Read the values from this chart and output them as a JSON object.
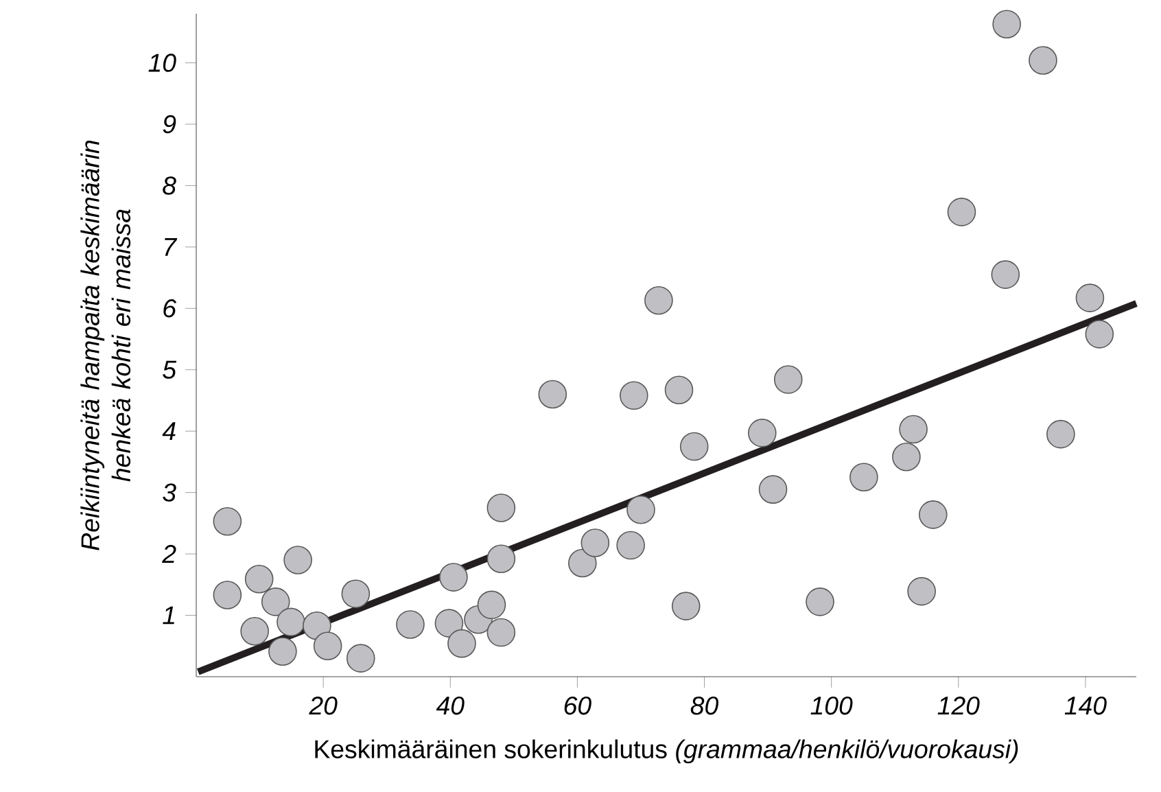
{
  "chart_data": {
    "type": "scatter",
    "xlabel": "Keskimääräinen sokerinkulutus *(grammaa/henkilö/vuorokausi)*",
    "ylabel": "Reikiintyneitä hampaita keskimäärin henkeä kohti eri maissa",
    "xlim": [
      0,
      148
    ],
    "ylim": [
      0,
      10.8
    ],
    "xticks": [
      20,
      40,
      60,
      80,
      100,
      120,
      140
    ],
    "yticks": [
      1,
      2,
      3,
      4,
      5,
      6,
      7,
      8,
      9,
      10
    ],
    "grid": false,
    "marker": "circle",
    "series": [
      {
        "type": "scatter",
        "color": "#c0c0c4",
        "x": [
          4.9,
          4.9,
          9.2,
          9.9,
          12.5,
          13.6,
          14.9,
          16.0,
          19.0,
          20.7,
          25.1,
          25.9,
          33.7,
          39.8,
          40.5,
          41.8,
          44.4,
          46.5,
          48.0,
          48.0,
          48.0,
          56.1,
          60.8,
          62.8,
          68.4,
          68.9,
          70.0,
          72.8,
          76.0,
          77.1,
          78.4,
          89.1,
          90.8,
          93.2,
          98.2,
          105.1,
          111.8,
          112.9,
          114.2,
          116.0,
          120.5,
          127.4,
          127.6,
          133.3,
          136.1,
          140.7,
          142.2
        ],
        "values": [
          2.53,
          1.33,
          0.74,
          1.59,
          1.22,
          0.41,
          0.89,
          1.9,
          0.83,
          0.5,
          1.35,
          0.3,
          0.85,
          0.87,
          1.62,
          0.54,
          0.93,
          1.17,
          2.75,
          1.92,
          0.72,
          4.6,
          1.85,
          2.18,
          2.14,
          4.58,
          2.72,
          6.13,
          4.67,
          1.15,
          3.75,
          3.97,
          3.05,
          4.84,
          1.22,
          3.25,
          3.58,
          4.03,
          1.39,
          2.64,
          7.57,
          6.55,
          10.63,
          10.04,
          3.95,
          6.17,
          5.58
        ]
      },
      {
        "type": "line",
        "color": "#231f20",
        "marker": "none",
        "x": [
          0.3,
          148
        ],
        "values": [
          0.08,
          6.08
        ]
      }
    ]
  }
}
